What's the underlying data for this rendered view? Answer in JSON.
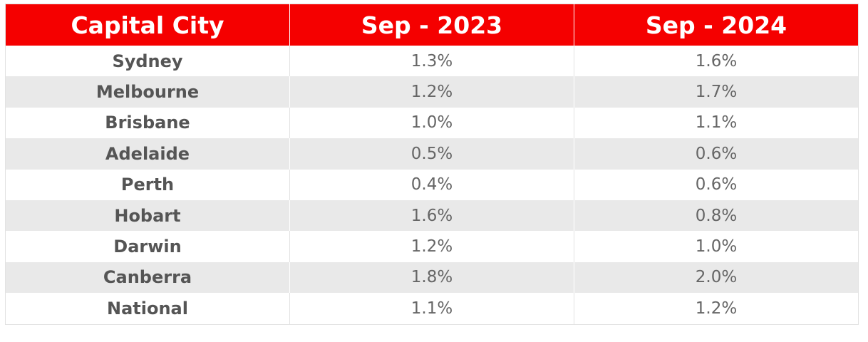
{
  "table": {
    "header": [
      "Capital City",
      "Sep - 2023",
      "Sep - 2024"
    ],
    "rows": [
      [
        "Sydney",
        "1.3%",
        "1.6%"
      ],
      [
        "Melbourne",
        "1.2%",
        "1.7%"
      ],
      [
        "Brisbane",
        "1.0%",
        "1.1%"
      ],
      [
        "Adelaide",
        "0.5%",
        "0.6%"
      ],
      [
        "Perth",
        "0.4%",
        "0.6%"
      ],
      [
        "Hobart",
        "1.6%",
        "0.8%"
      ],
      [
        "Darwin",
        "1.2%",
        "1.0%"
      ],
      [
        "Canberra",
        "1.8%",
        "2.0%"
      ],
      [
        "National",
        "1.1%",
        "1.2%"
      ]
    ]
  }
}
